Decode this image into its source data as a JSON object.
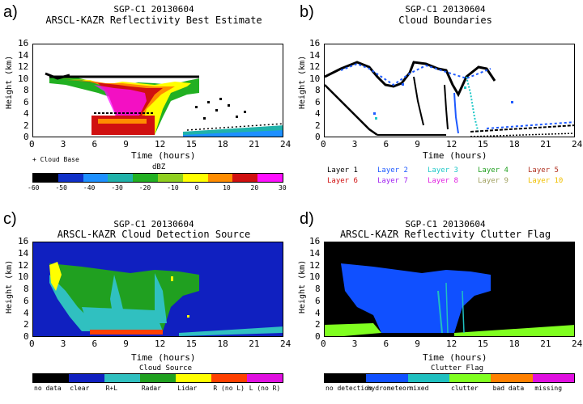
{
  "chart_data": [
    {
      "panel": "a)",
      "type": "heatmap",
      "site_title": "SGP-C1 20130604",
      "title": "ARSCL-KAZR Reflectivity Best Estimate",
      "xlabel": "Time (hours)",
      "ylabel": "Height (km)",
      "xticks": [
        0,
        3,
        6,
        9,
        12,
        15,
        18,
        21,
        24
      ],
      "yticks": [
        0,
        2,
        4,
        6,
        8,
        10,
        12,
        14,
        16
      ],
      "xlim": [
        0,
        24
      ],
      "ylim": [
        0,
        16
      ],
      "legend_note": "+ Cloud Base",
      "colorbar": {
        "label": "dBZ",
        "ticks": [
          "-60",
          "-50",
          "-40",
          "-30",
          "-20",
          "-10",
          "0",
          "10",
          "20",
          "30"
        ],
        "colors": [
          "#000000",
          "#1030c8",
          "#1e90ff",
          "#20b2aa",
          "#22b022",
          "#90d020",
          "#ffff00",
          "#ff8c00",
          "#d01010",
          "#ff10ff"
        ]
      }
    },
    {
      "panel": "b)",
      "type": "scatter",
      "site_title": "SGP-C1 20130604",
      "title": "Cloud Boundaries",
      "xlabel": "Time (hours)",
      "ylabel": "Height (km)",
      "xticks": [
        0,
        3,
        6,
        9,
        12,
        15,
        18,
        21,
        24
      ],
      "yticks": [
        0,
        2,
        4,
        6,
        8,
        10,
        12,
        14,
        16
      ],
      "xlim": [
        0,
        24
      ],
      "ylim": [
        0,
        16
      ],
      "legend": [
        {
          "name": "Layer 1",
          "color": "#000000"
        },
        {
          "name": "Layer 2",
          "color": "#1e5aff"
        },
        {
          "name": "Layer 3",
          "color": "#20c8c8"
        },
        {
          "name": "Layer 4",
          "color": "#22a022"
        },
        {
          "name": "Layer 5",
          "color": "#b03020"
        },
        {
          "name": "Layer 6",
          "color": "#d01010"
        },
        {
          "name": "Layer 7",
          "color": "#a020f0"
        },
        {
          "name": "Layer 8",
          "color": "#e020e0"
        },
        {
          "name": "Layer 9",
          "color": "#a0a060"
        },
        {
          "name": "Layer 10",
          "color": "#f0c000"
        }
      ]
    },
    {
      "panel": "c)",
      "type": "heatmap",
      "site_title": "SGP-C1 20130604",
      "title": "ARSCL-KAZR Cloud Detection Source",
      "xlabel": "Time (hours)",
      "ylabel": "Height (km)",
      "xticks": [
        0,
        3,
        6,
        9,
        12,
        15,
        18,
        21,
        24
      ],
      "yticks": [
        0,
        2,
        4,
        6,
        8,
        10,
        12,
        14,
        16
      ],
      "xlim": [
        0,
        24
      ],
      "ylim": [
        0,
        16
      ],
      "colorbar": {
        "label": "Cloud Source",
        "categories": [
          "no data",
          "clear",
          "R+L",
          "Radar",
          "Lidar",
          "R (no L)",
          "L (no R)"
        ],
        "colors": [
          "#000000",
          "#1020c0",
          "#30c0c0",
          "#20a020",
          "#ffff00",
          "#ff4000",
          "#e010e0"
        ]
      }
    },
    {
      "panel": "d)",
      "type": "heatmap",
      "site_title": "SGP-C1 20130604",
      "title": "ARSCL-KAZR Reflectivity Clutter Flag",
      "xlabel": "Time (hours)",
      "ylabel": "Height (km)",
      "xticks": [
        0,
        3,
        6,
        9,
        12,
        15,
        18,
        21,
        24
      ],
      "yticks": [
        0,
        2,
        4,
        6,
        8,
        10,
        12,
        14,
        16
      ],
      "xlim": [
        0,
        24
      ],
      "ylim": [
        0,
        16
      ],
      "colorbar": {
        "label": "Clutter Flag",
        "categories": [
          "no detection",
          "hydrometeor",
          "mixed",
          "clutter",
          "bad data",
          "missing"
        ],
        "colors": [
          "#000000",
          "#1050ff",
          "#20c0c0",
          "#80ff20",
          "#ff8000",
          "#e010e0"
        ]
      }
    }
  ]
}
